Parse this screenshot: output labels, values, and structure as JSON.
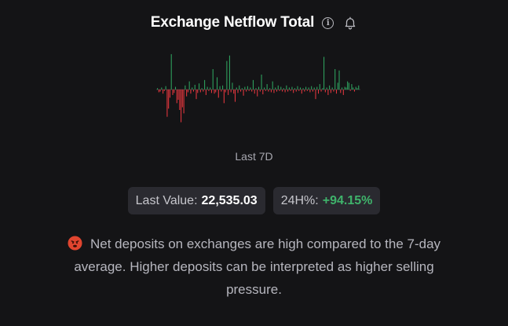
{
  "header": {
    "title": "Exchange Netflow Total"
  },
  "icons": {
    "info": "info-icon",
    "alert": "bell-icon",
    "sentiment": "angry-face-icon"
  },
  "chart_data": {
    "type": "bar",
    "title": "",
    "xlabel": "",
    "ylabel": "",
    "colors": {
      "positive": "#2fa35f",
      "negative": "#e5373e"
    },
    "values": [
      2,
      -4,
      -3,
      3,
      -6,
      -2,
      5,
      -40,
      -28,
      -12,
      52,
      -8,
      -5,
      4,
      -20,
      -15,
      -30,
      -48,
      -26,
      -35,
      6,
      -10,
      -4,
      12,
      -6,
      3,
      -3,
      7,
      -14,
      -5,
      9,
      -4,
      2,
      -3,
      14,
      -8,
      4,
      -2,
      3,
      -5,
      30,
      -6,
      -4,
      18,
      -12,
      5,
      -3,
      6,
      -20,
      -4,
      42,
      -8,
      50,
      -4,
      10,
      -6,
      -18,
      3,
      -5,
      6,
      -3,
      2,
      -9,
      4,
      -3,
      5,
      -2,
      3,
      -3,
      14,
      -6,
      2,
      -10,
      4,
      -3,
      22,
      -7,
      3,
      -2,
      8,
      -3,
      2,
      -4,
      12,
      -5,
      3,
      -3,
      6,
      -2,
      4,
      -3,
      2,
      -4,
      6,
      -3,
      3,
      -2,
      4,
      -5,
      2,
      -3,
      5,
      -2,
      3,
      -6,
      2,
      -3,
      4,
      -2,
      3,
      -4,
      5,
      -3,
      3,
      -14,
      4,
      -6,
      8,
      -3,
      2,
      48,
      -4,
      3,
      -8,
      6,
      -5,
      3,
      -3,
      30,
      -6,
      10,
      28,
      -5,
      3,
      -8,
      4,
      3,
      12,
      10,
      -2,
      8,
      3,
      -3,
      4,
      2,
      6
    ],
    "ylim": [
      -60,
      60
    ]
  },
  "range": {
    "label": "Last 7D"
  },
  "stats": {
    "last_value_label": "Last Value:",
    "last_value": "22,535.03",
    "change_label": "24H%:",
    "change_value": "+94.15%"
  },
  "message": {
    "text": "Net deposits on exchanges are high compared to the 7-day average. Higher deposits can be interpreted as higher selling pressure."
  }
}
